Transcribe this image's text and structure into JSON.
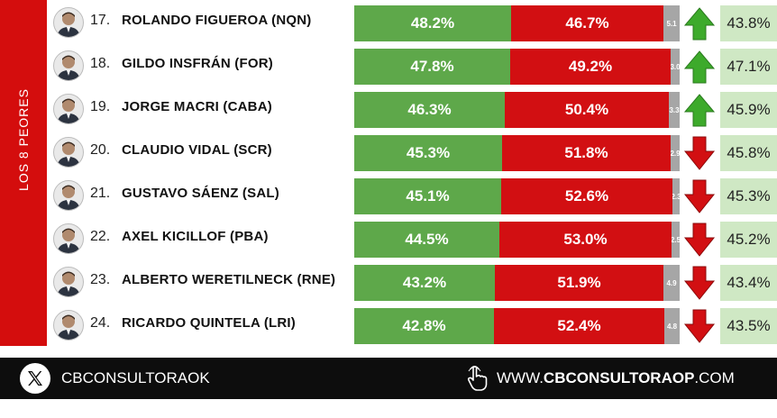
{
  "section_label": "LOS 8 PEORES",
  "chart_data": {
    "type": "bar",
    "stacked": true,
    "orientation": "horizontal",
    "value_format": "percent",
    "rows": [
      {
        "rank": "17.",
        "name": "ROLANDO FIGUEROA (NQN)",
        "approve": 48.2,
        "disapprove": 46.7,
        "ns": 5.1,
        "ns_label": "5.1",
        "trend": "up",
        "previous": 43.8
      },
      {
        "rank": "18.",
        "name": "GILDO INSFRÁN (FOR)",
        "approve": 47.8,
        "disapprove": 49.2,
        "ns": 3.0,
        "ns_label": "3.0",
        "trend": "up",
        "previous": 47.1
      },
      {
        "rank": "19.",
        "name": "JORGE MACRI (CABA)",
        "approve": 46.3,
        "disapprove": 50.4,
        "ns": 3.3,
        "ns_label": "3.3",
        "trend": "up",
        "previous": 45.9
      },
      {
        "rank": "20.",
        "name": "CLAUDIO VIDAL (SCR)",
        "approve": 45.3,
        "disapprove": 51.8,
        "ns": 2.9,
        "ns_label": "2.9",
        "trend": "down",
        "previous": 45.8
      },
      {
        "rank": "21.",
        "name": "GUSTAVO SÁENZ (SAL)",
        "approve": 45.1,
        "disapprove": 52.6,
        "ns": 2.3,
        "ns_label": "2.3",
        "trend": "down",
        "previous": 45.3
      },
      {
        "rank": "22.",
        "name": "AXEL KICILLOF (PBA)",
        "approve": 44.5,
        "disapprove": 53.0,
        "ns": 2.5,
        "ns_label": "2.5",
        "trend": "down",
        "previous": 45.2
      },
      {
        "rank": "23.",
        "name": "ALBERTO WERETILNECK (RNE)",
        "approve": 43.2,
        "disapprove": 51.9,
        "ns": 4.9,
        "ns_label": "4.9",
        "trend": "down",
        "previous": 43.4
      },
      {
        "rank": "24.",
        "name": "RICARDO QUINTELA (LRI)",
        "approve": 42.8,
        "disapprove": 52.4,
        "ns": 4.8,
        "ns_label": "4.8",
        "trend": "down",
        "previous": 43.5
      }
    ]
  },
  "colors": {
    "approve": "#5ea84a",
    "disapprove": "#d20f12",
    "ns": "#a6a6a6",
    "arrow_up": "#3daa2b",
    "arrow_down": "#d20f12",
    "previous_bg": "#cfe8c4",
    "side": "#d40d0d"
  },
  "footer": {
    "x_icon": "x-logo-icon",
    "handle": "CBCONSULTORAOK",
    "hand_icon": "pointer-hand-icon",
    "site_prefix": "WWW.",
    "site_bold": "CBCONSULTORAOP",
    "site_suffix": ".COM"
  }
}
